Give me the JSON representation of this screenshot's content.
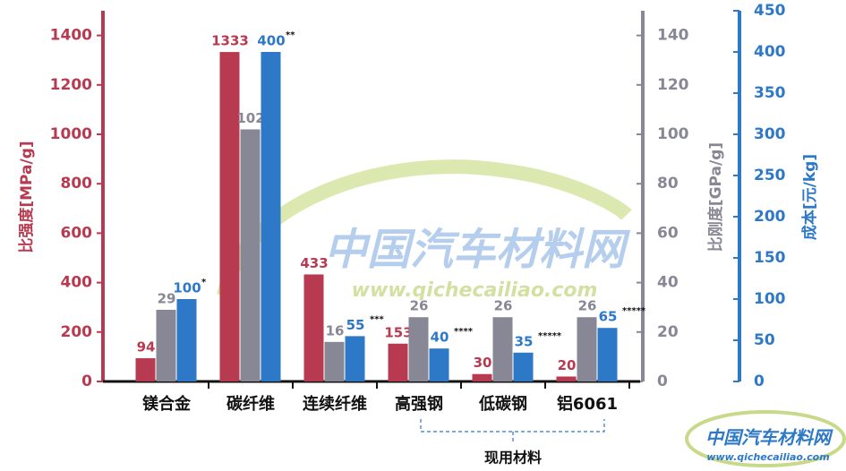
{
  "chart_data": {
    "type": "bar",
    "categories": [
      "镁合金",
      "碳纤维",
      "连续纤维",
      "高强钢",
      "低碳钢",
      "铝6061"
    ],
    "series": [
      {
        "name": "比强度[MPa/g]",
        "color": "#b83a50",
        "axis": "y",
        "values": [
          94,
          1333,
          433,
          153,
          30,
          20
        ]
      },
      {
        "name": "比刚度[GPa/g]",
        "color": "#878796",
        "axis": "y2",
        "values": [
          29,
          102,
          16,
          26,
          26,
          26
        ]
      },
      {
        "name": "成本[元/kg]",
        "color": "#2e78c8",
        "axis": "y3",
        "values": [
          100,
          400,
          55,
          40,
          35,
          65
        ],
        "marks": [
          "*",
          "**",
          "***",
          "****",
          "*****",
          "*****"
        ]
      }
    ],
    "ylim": [
      0,
      1500
    ],
    "yticks": [
      0,
      200,
      400,
      600,
      800,
      1000,
      1200,
      1400
    ],
    "y2lim": [
      0,
      150
    ],
    "y2ticks": [
      0,
      20,
      40,
      60,
      80,
      100,
      120,
      140
    ],
    "y3lim": [
      0,
      450
    ],
    "y3ticks": [
      0,
      50,
      100,
      150,
      200,
      250,
      300,
      350,
      400,
      450
    ],
    "group_label": "现用材料",
    "watermark": {
      "name": "中国汽车材料网",
      "url": "www.qichecailiao.com"
    },
    "logo": {
      "name": "中国汽车材料网",
      "url": "www.qichecailiao.com"
    }
  }
}
